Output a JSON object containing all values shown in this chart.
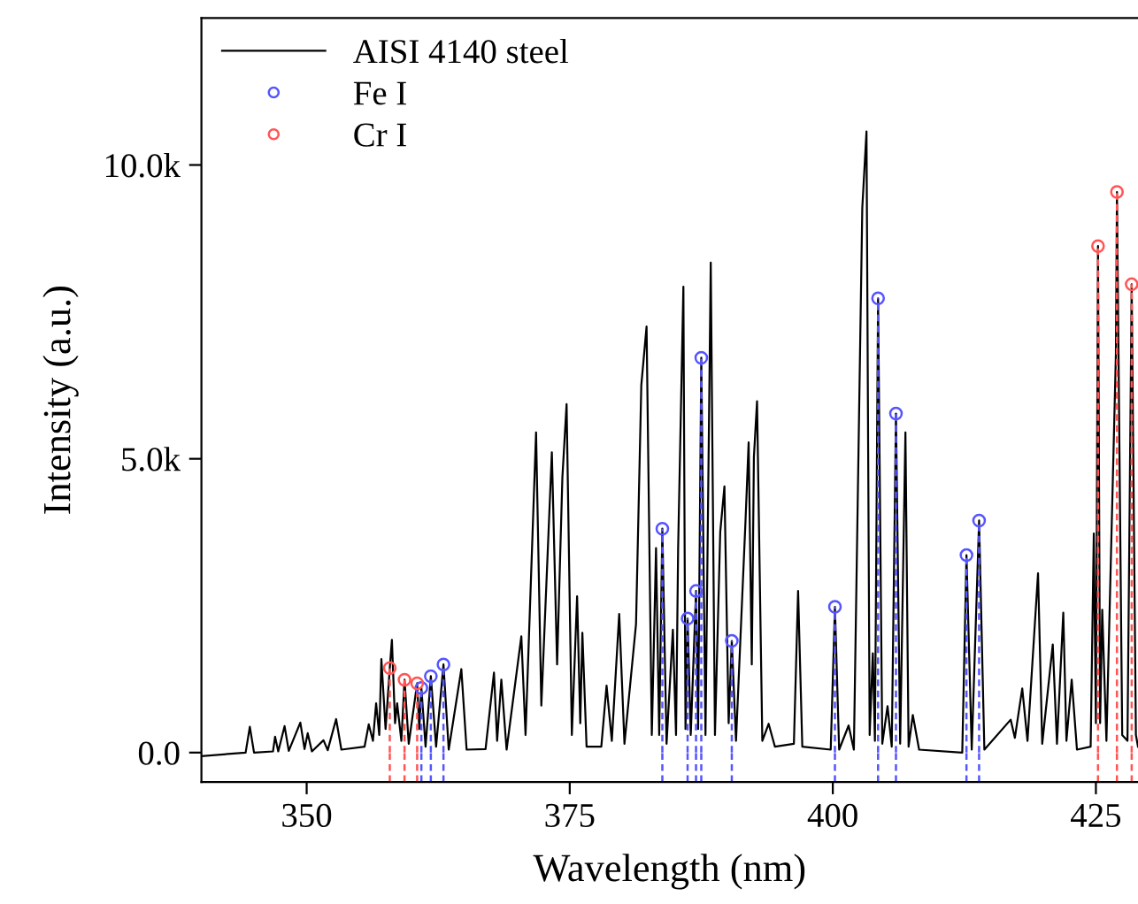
{
  "chart_data": {
    "type": "line",
    "xlabel": "Wavelength (nm)",
    "ylabel": "Intensity (a.u.)",
    "xlim": [
      340,
      429
    ],
    "ylim": [
      -500,
      12500
    ],
    "xticks": [
      350,
      375,
      400,
      425
    ],
    "yticks": [
      {
        "value": 0,
        "label": "0.0"
      },
      {
        "value": 5000,
        "label": "5.0k"
      },
      {
        "value": 10000,
        "label": "10.0k"
      }
    ],
    "grid": false,
    "legend": "top left",
    "series": [
      {
        "name": "AISI 4140 steel",
        "color": "#000000",
        "marker": "none",
        "line_style": "solid",
        "x": [
          340,
          344.2,
          344.6,
          345.0,
          346.8,
          347.0,
          347.3,
          347.9,
          348.3,
          349.4,
          349.8,
          350.1,
          350.5,
          351.6,
          352.0,
          352.8,
          353.3,
          355.5,
          355.9,
          356.3,
          356.6,
          356.9,
          357.1,
          357.5,
          357.9,
          358.1,
          358.4,
          358.6,
          359.0,
          359.3,
          359.7,
          360.5,
          360.7,
          360.9,
          361.3,
          361.8,
          362.3,
          363.0,
          363.5,
          364.7,
          365.2,
          367.0,
          367.8,
          368.1,
          368.5,
          369.0,
          370.4,
          370.8,
          371.8,
          372.3,
          373.3,
          373.8,
          374.3,
          374.7,
          375.2,
          375.7,
          376.0,
          376.2,
          376.6,
          378.0,
          378.5,
          379.0,
          379.7,
          380.2,
          381.3,
          381.8,
          382.3,
          382.8,
          383.2,
          383.5,
          383.8,
          384.2,
          384.8,
          385.1,
          385.3,
          385.8,
          386.0,
          386.2,
          386.5,
          387.0,
          387.2,
          387.5,
          387.9,
          388.4,
          388.8,
          389.3,
          389.7,
          390.1,
          390.4,
          390.8,
          391.7,
          392.0,
          392.3,
          392.5,
          392.8,
          393.3,
          393.9,
          394.5,
          396.3,
          396.7,
          397.1,
          399.8,
          400.2,
          400.6,
          401.5,
          402.0,
          402.8,
          403.2,
          403.5,
          403.8,
          404.0,
          404.3,
          404.7,
          405.2,
          405.6,
          406.0,
          406.4,
          406.9,
          407.2,
          407.6,
          408.2,
          412.3,
          412.7,
          413.2,
          413.9,
          414.4,
          416.9,
          417.3,
          418.0,
          418.5,
          419.5,
          419.9,
          420.9,
          421.3,
          421.9,
          422.2,
          422.7,
          423.2,
          424.5,
          424.8,
          425.0,
          425.2,
          425.4,
          425.6,
          426.0,
          426.9,
          427.0,
          427.5,
          428.0,
          428.4,
          428.8,
          429
        ],
        "values": [
          -60,
          0,
          440,
          0,
          20,
          270,
          20,
          450,
          30,
          510,
          60,
          330,
          20,
          210,
          40,
          570,
          50,
          100,
          480,
          200,
          840,
          300,
          1590,
          400,
          1440,
          1920,
          500,
          840,
          200,
          1240,
          150,
          1180,
          400,
          1100,
          100,
          1300,
          100,
          1500,
          50,
          1420,
          50,
          60,
          1360,
          200,
          1240,
          50,
          1980,
          300,
          5450,
          800,
          5110,
          1500,
          4680,
          5930,
          300,
          2660,
          500,
          2040,
          100,
          100,
          1140,
          200,
          2360,
          150,
          2190,
          6250,
          7250,
          300,
          3480,
          300,
          3810,
          150,
          2090,
          300,
          3480,
          7930,
          400,
          2280,
          300,
          2750,
          400,
          6720,
          300,
          8340,
          300,
          3750,
          4530,
          500,
          1900,
          200,
          3930,
          5280,
          1500,
          5030,
          5980,
          200,
          490,
          100,
          150,
          2750,
          100,
          50,
          2480,
          50,
          460,
          50,
          9270,
          10570,
          300,
          1690,
          200,
          7730,
          150,
          790,
          100,
          5770,
          150,
          5450,
          100,
          640,
          50,
          0,
          3360,
          50,
          3950,
          50,
          560,
          250,
          1090,
          200,
          3050,
          150,
          1840,
          150,
          2380,
          200,
          1240,
          50,
          100,
          3730,
          500,
          8620,
          500,
          2430,
          200,
          6780,
          9540,
          300,
          200,
          7970,
          300,
          100
        ]
      },
      {
        "name": "Fe I",
        "type": "lollipop",
        "color": "#5555ff",
        "marker": "circle",
        "line_style": "dashed",
        "x": [
          360.9,
          361.8,
          363.0,
          383.8,
          386.2,
          387.0,
          387.5,
          390.4,
          400.2,
          404.3,
          406.0,
          412.7,
          413.9
        ],
        "values": [
          1100,
          1300,
          1500,
          3810,
          2280,
          2750,
          6720,
          1900,
          2480,
          7730,
          5770,
          3360,
          3950
        ]
      },
      {
        "name": "Cr I",
        "type": "lollipop",
        "color": "#ff5555",
        "marker": "circle",
        "line_style": "dashed",
        "x": [
          357.9,
          359.3,
          360.5,
          425.2,
          427.0,
          428.4
        ],
        "values": [
          1440,
          1240,
          1180,
          8620,
          9540,
          7970
        ]
      }
    ]
  }
}
